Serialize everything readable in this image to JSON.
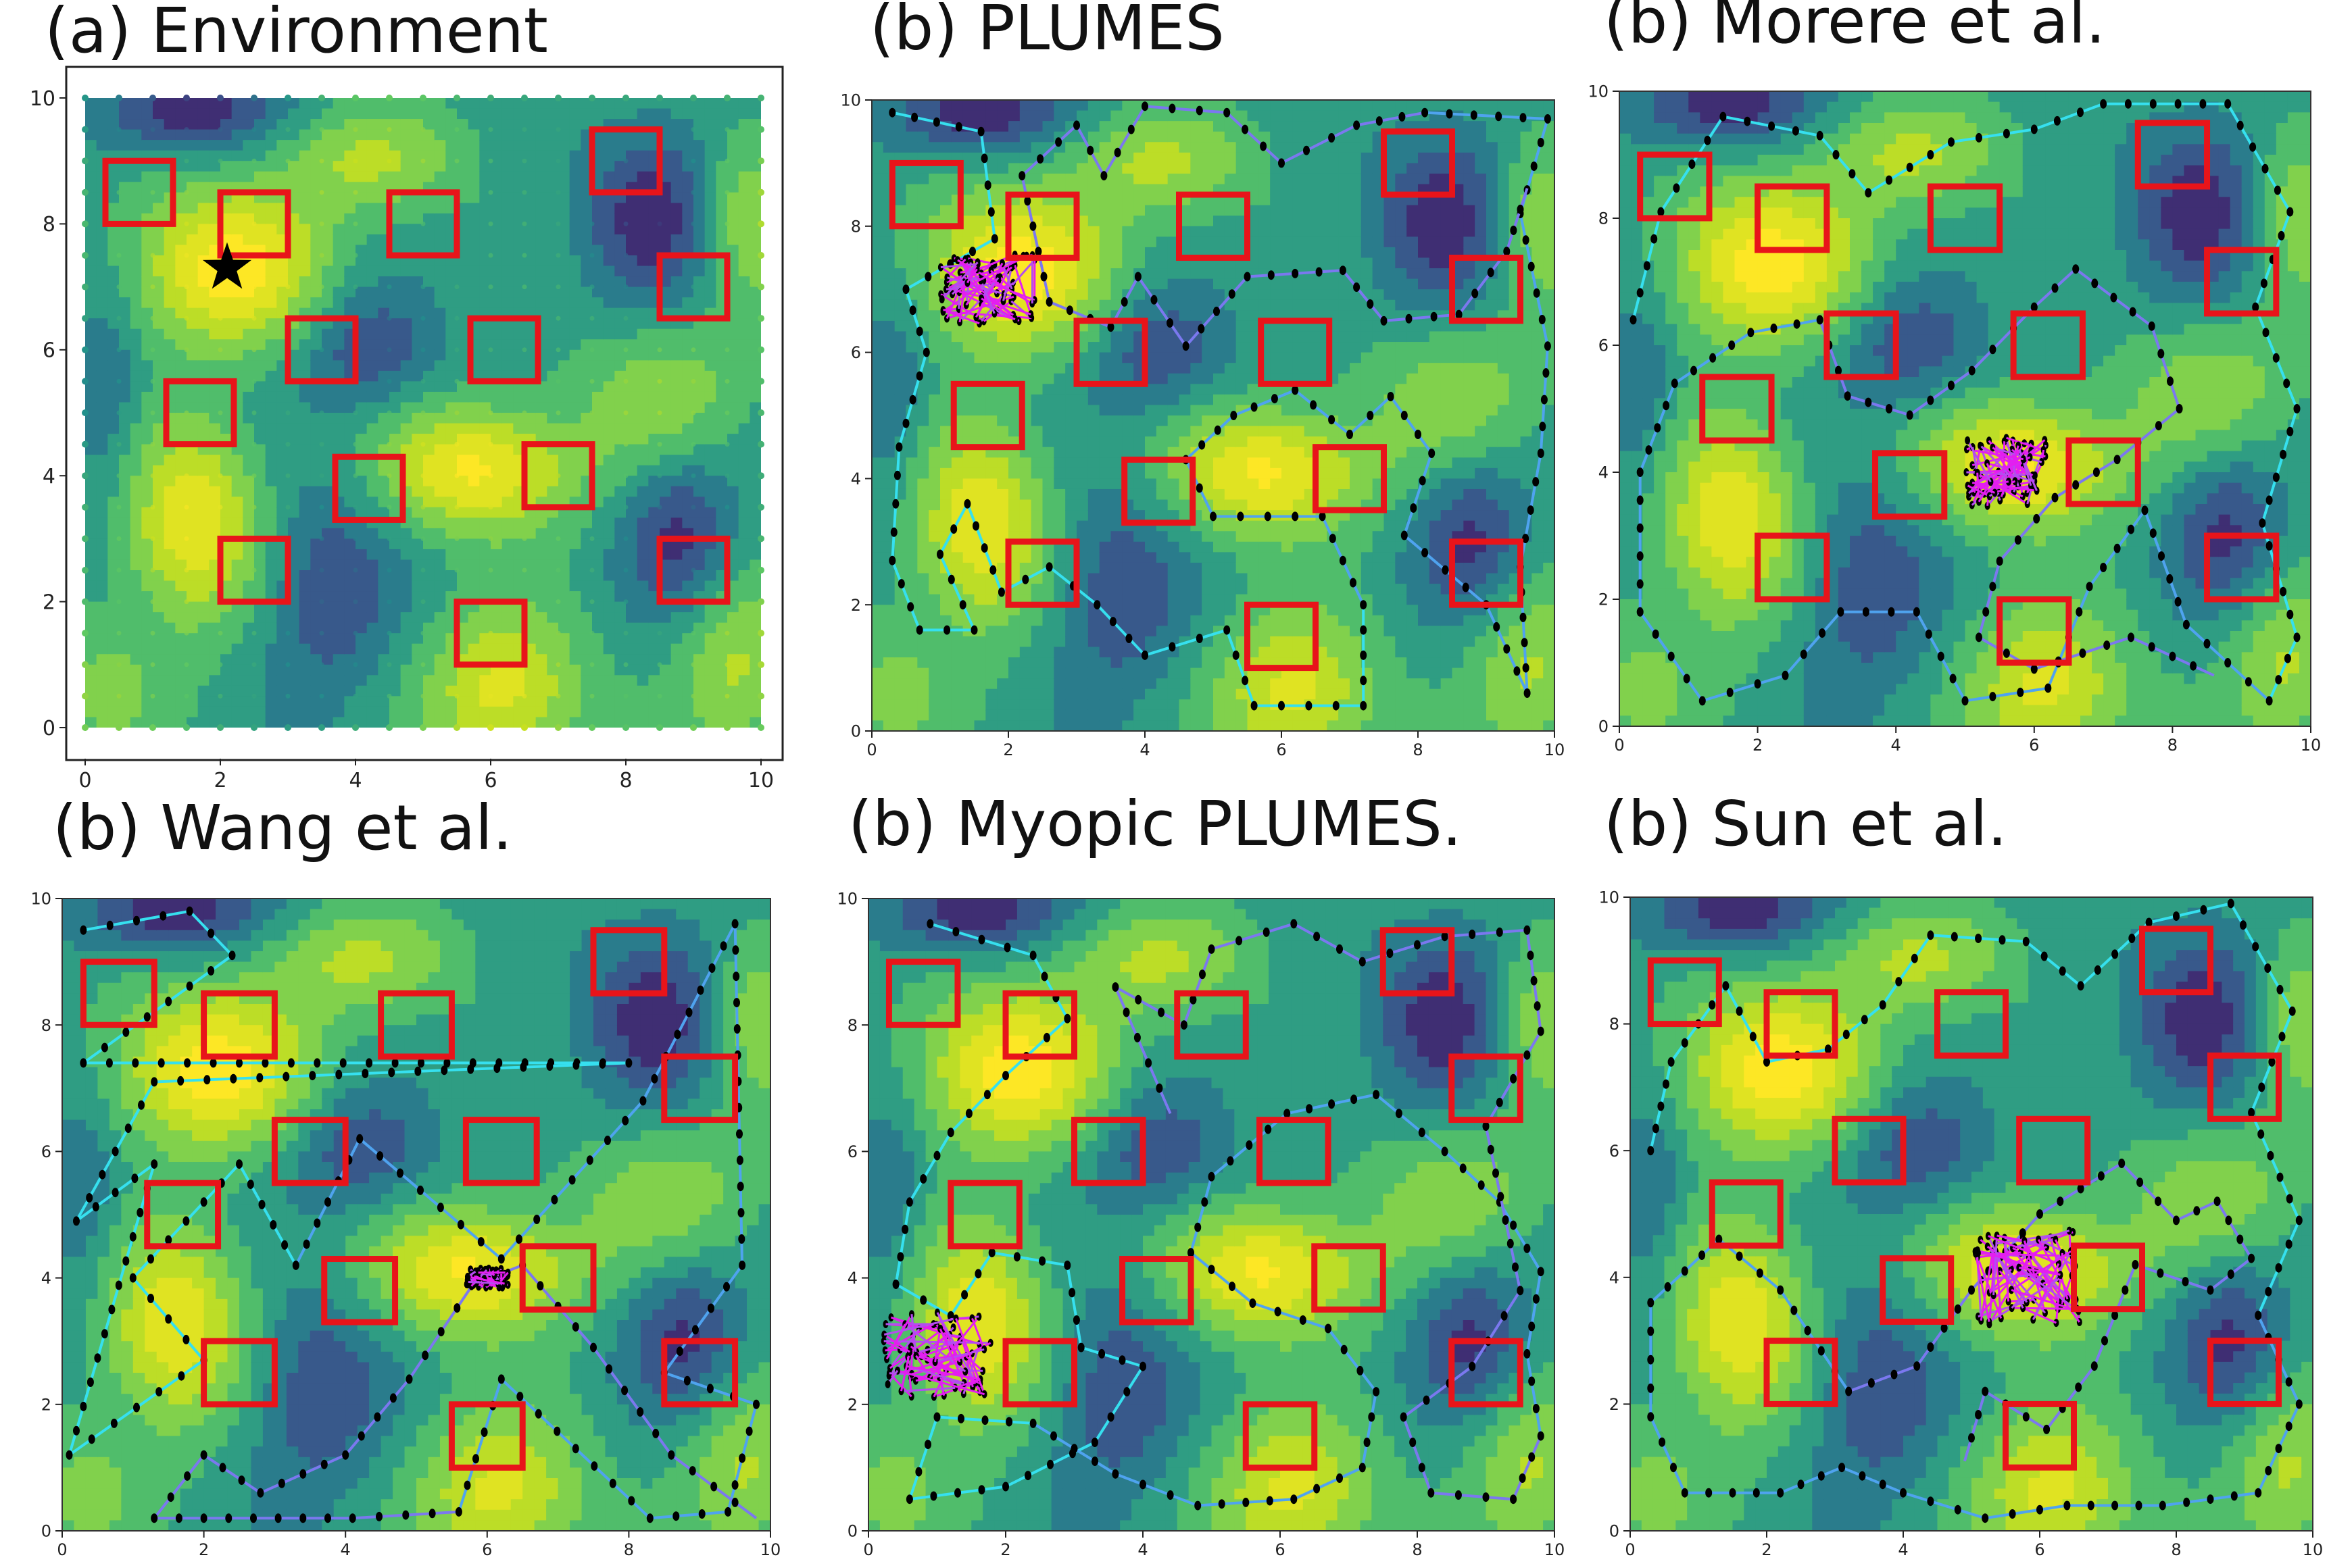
{
  "figure": {
    "colormap": [
      "#440154",
      "#3b528b",
      "#21918c",
      "#5ec962",
      "#c8e020",
      "#fde725"
    ],
    "obstacle_color": "#e8141a",
    "path_colors": [
      "#36e0ef",
      "#4fa3ef",
      "#7b78ef",
      "#b44df0",
      "#e41ef0"
    ],
    "waypoint_color": "#000000",
    "star_color": "#000000"
  },
  "chart_data": [
    {
      "type": "heatmap",
      "title": "(a) Environment",
      "xlabel": "",
      "ylabel": "",
      "xlim": [
        0,
        10
      ],
      "ylim": [
        0,
        10
      ],
      "xticks": [
        "0",
        "2",
        "4",
        "6",
        "8",
        "10"
      ],
      "yticks": [
        "0",
        "2",
        "4",
        "6",
        "8",
        "10"
      ],
      "field": {
        "peaks": [
          {
            "x": 2.1,
            "y": 7.3,
            "amp": 1.0,
            "sx": 1.0,
            "sy": 0.9
          },
          {
            "x": 1.6,
            "y": 3.2,
            "amp": 0.9,
            "sx": 0.7,
            "sy": 1.1
          },
          {
            "x": 5.8,
            "y": 4.1,
            "amp": 0.95,
            "sx": 1.0,
            "sy": 0.7
          },
          {
            "x": 6.2,
            "y": 0.6,
            "amp": 0.8,
            "sx": 0.8,
            "sy": 0.9
          },
          {
            "x": 9.6,
            "y": 1.0,
            "amp": 0.55,
            "sx": 0.6,
            "sy": 1.0
          },
          {
            "x": 8.6,
            "y": 5.2,
            "amp": 0.45,
            "sx": 0.9,
            "sy": 0.9
          },
          {
            "x": 4.2,
            "y": 9.0,
            "amp": 0.5,
            "sx": 1.0,
            "sy": 0.6
          },
          {
            "x": 9.8,
            "y": 8.2,
            "amp": 0.5,
            "sx": 0.5,
            "sy": 1.0
          },
          {
            "x": 0.2,
            "y": 0.6,
            "amp": 0.35,
            "sx": 0.7,
            "sy": 0.7
          }
        ],
        "troughs": [
          {
            "x": 1.5,
            "y": 9.8,
            "amp": 0.9,
            "sx": 0.9,
            "sy": 0.5
          },
          {
            "x": 8.4,
            "y": 8.2,
            "amp": 0.8,
            "sx": 0.7,
            "sy": 1.0
          },
          {
            "x": 4.2,
            "y": 6.0,
            "amp": 0.6,
            "sx": 0.7,
            "sy": 0.7
          },
          {
            "x": 8.8,
            "y": 3.1,
            "amp": 0.7,
            "sx": 0.6,
            "sy": 1.0
          },
          {
            "x": 3.6,
            "y": 2.2,
            "amp": 0.6,
            "sx": 0.7,
            "sy": 1.2
          },
          {
            "x": 0.3,
            "y": 5.5,
            "amp": 0.4,
            "sx": 0.4,
            "sy": 1.2
          }
        ],
        "base": 0.45
      },
      "obstacles": [
        {
          "x": 0.3,
          "y": 8.0,
          "w": 1.0,
          "h": 1.0
        },
        {
          "x": 2.0,
          "y": 7.5,
          "w": 1.0,
          "h": 1.0
        },
        {
          "x": 4.5,
          "y": 7.5,
          "w": 1.0,
          "h": 1.0
        },
        {
          "x": 7.5,
          "y": 8.5,
          "w": 1.0,
          "h": 1.0
        },
        {
          "x": 8.5,
          "y": 6.5,
          "w": 1.0,
          "h": 1.0
        },
        {
          "x": 3.0,
          "y": 5.5,
          "w": 1.0,
          "h": 1.0
        },
        {
          "x": 5.7,
          "y": 5.5,
          "w": 1.0,
          "h": 1.0
        },
        {
          "x": 1.2,
          "y": 4.5,
          "w": 1.0,
          "h": 1.0
        },
        {
          "x": 3.7,
          "y": 3.3,
          "w": 1.0,
          "h": 1.0
        },
        {
          "x": 6.5,
          "y": 3.5,
          "w": 1.0,
          "h": 1.0
        },
        {
          "x": 2.0,
          "y": 2.0,
          "w": 1.0,
          "h": 1.0
        },
        {
          "x": 8.5,
          "y": 2.0,
          "w": 1.0,
          "h": 1.0
        },
        {
          "x": 5.5,
          "y": 1.0,
          "w": 1.0,
          "h": 1.0
        }
      ],
      "star": {
        "x": 2.1,
        "y": 7.3
      }
    },
    {
      "type": "line",
      "title": "(b) PLUMES",
      "xlim": [
        0,
        10
      ],
      "ylim": [
        0,
        10
      ],
      "xticks": [
        "0",
        "2",
        "4",
        "6",
        "8",
        "10"
      ],
      "yticks": [
        "0",
        "2",
        "4",
        "6",
        "8",
        "10"
      ],
      "cluster": {
        "x": 1.7,
        "y": 7.0,
        "rx": 0.7,
        "ry": 0.55
      },
      "path": [
        [
          0.3,
          9.8
        ],
        [
          1.6,
          9.5
        ],
        [
          1.8,
          7.8
        ],
        [
          0.5,
          7.0
        ],
        [
          0.8,
          6.0
        ],
        [
          0.4,
          4.5
        ],
        [
          0.3,
          2.7
        ],
        [
          0.7,
          1.6
        ],
        [
          1.5,
          1.6
        ],
        [
          1.0,
          2.8
        ],
        [
          1.4,
          3.6
        ],
        [
          1.9,
          2.2
        ],
        [
          2.6,
          2.6
        ],
        [
          3.3,
          2.0
        ],
        [
          4.0,
          1.2
        ],
        [
          5.2,
          1.6
        ],
        [
          5.6,
          0.4
        ],
        [
          7.2,
          0.4
        ],
        [
          7.2,
          2.0
        ],
        [
          6.6,
          3.4
        ],
        [
          5.0,
          3.4
        ],
        [
          4.6,
          4.3
        ],
        [
          5.3,
          5.0
        ],
        [
          6.2,
          5.4
        ],
        [
          7.0,
          4.7
        ],
        [
          7.6,
          5.3
        ],
        [
          8.2,
          4.4
        ],
        [
          7.8,
          3.1
        ],
        [
          9.0,
          2.0
        ],
        [
          9.6,
          0.6
        ],
        [
          9.5,
          2.6
        ],
        [
          9.8,
          4.4
        ],
        [
          9.9,
          6.1
        ],
        [
          9.5,
          8.2
        ],
        [
          9.9,
          9.7
        ],
        [
          8.1,
          9.8
        ],
        [
          7.1,
          9.6
        ],
        [
          6.0,
          9.0
        ],
        [
          5.2,
          9.8
        ],
        [
          4.0,
          9.9
        ],
        [
          3.4,
          8.8
        ],
        [
          3.0,
          9.6
        ],
        [
          2.2,
          8.8
        ],
        [
          2.6,
          6.8
        ],
        [
          3.5,
          6.4
        ],
        [
          3.9,
          7.2
        ],
        [
          4.6,
          6.1
        ],
        [
          5.5,
          7.2
        ],
        [
          6.9,
          7.3
        ],
        [
          7.5,
          6.5
        ],
        [
          8.6,
          6.6
        ],
        [
          9.3,
          7.6
        ],
        [
          9.6,
          8.6
        ]
      ],
      "obstacles_ref": 0
    },
    {
      "type": "line",
      "title": "(b) Morere et al.",
      "xlim": [
        0,
        10
      ],
      "ylim": [
        0,
        10
      ],
      "xticks": [
        "0",
        "2",
        "4",
        "6",
        "8",
        "10"
      ],
      "yticks": [
        "0",
        "2",
        "4",
        "6",
        "8",
        "10"
      ],
      "cluster": {
        "x": 5.6,
        "y": 4.0,
        "rx": 0.6,
        "ry": 0.55
      },
      "path": [
        [
          0.2,
          6.4
        ],
        [
          0.6,
          8.1
        ],
        [
          1.5,
          9.6
        ],
        [
          2.9,
          9.3
        ],
        [
          3.6,
          8.4
        ],
        [
          4.8,
          9.2
        ],
        [
          6.0,
          9.4
        ],
        [
          7.0,
          9.8
        ],
        [
          8.8,
          9.8
        ],
        [
          9.7,
          8.1
        ],
        [
          9.2,
          6.6
        ],
        [
          9.8,
          5.0
        ],
        [
          9.3,
          3.2
        ],
        [
          9.8,
          1.4
        ],
        [
          9.4,
          0.4
        ],
        [
          8.2,
          1.6
        ],
        [
          7.6,
          3.4
        ],
        [
          6.8,
          2.2
        ],
        [
          6.2,
          0.6
        ],
        [
          5.0,
          0.4
        ],
        [
          4.3,
          1.8
        ],
        [
          3.2,
          1.8
        ],
        [
          2.4,
          0.8
        ],
        [
          1.2,
          0.4
        ],
        [
          0.3,
          1.8
        ],
        [
          0.3,
          4.0
        ],
        [
          0.8,
          5.4
        ],
        [
          1.9,
          6.2
        ],
        [
          2.9,
          6.4
        ],
        [
          3.3,
          5.2
        ],
        [
          4.2,
          4.9
        ],
        [
          5.1,
          5.6
        ],
        [
          6.0,
          6.6
        ],
        [
          6.6,
          7.2
        ],
        [
          7.7,
          6.3
        ],
        [
          8.1,
          5.0
        ],
        [
          7.2,
          4.2
        ],
        [
          6.3,
          3.6
        ],
        [
          5.5,
          2.6
        ],
        [
          5.2,
          1.4
        ],
        [
          6.0,
          0.9
        ],
        [
          7.4,
          1.4
        ],
        [
          8.6,
          0.8
        ]
      ],
      "obstacles_ref": 0
    },
    {
      "type": "line",
      "title": "(b) Wang et al.",
      "xlim": [
        0,
        10
      ],
      "ylim": [
        0,
        10
      ],
      "xticks": [
        "0",
        "2",
        "4",
        "6",
        "8",
        "10"
      ],
      "yticks": [
        "0",
        "2",
        "4",
        "6",
        "8",
        "10"
      ],
      "cluster": {
        "x": 6.0,
        "y": 4.0,
        "rx": 0.3,
        "ry": 0.15
      },
      "path": [
        [
          0.3,
          9.5
        ],
        [
          1.8,
          9.8
        ],
        [
          2.4,
          9.1
        ],
        [
          0.3,
          7.4
        ],
        [
          8.0,
          7.4
        ],
        [
          1.3,
          7.1
        ],
        [
          0.2,
          4.9
        ],
        [
          1.3,
          5.8
        ],
        [
          0.1,
          1.2
        ],
        [
          2.0,
          2.7
        ],
        [
          1.0,
          4.0
        ],
        [
          2.5,
          5.8
        ],
        [
          3.3,
          4.2
        ],
        [
          4.2,
          6.2
        ],
        [
          6.2,
          4.3
        ],
        [
          8.2,
          6.8
        ],
        [
          9.5,
          9.6
        ],
        [
          9.6,
          4.2
        ],
        [
          8.5,
          2.5
        ],
        [
          9.8,
          2.0
        ],
        [
          9.4,
          0.3
        ],
        [
          8.3,
          0.2
        ],
        [
          6.2,
          2.4
        ],
        [
          5.6,
          0.3
        ],
        [
          4.1,
          0.2
        ],
        [
          1.3,
          0.2
        ],
        [
          2.0,
          1.2
        ],
        [
          2.8,
          0.6
        ],
        [
          4.0,
          1.2
        ],
        [
          4.9,
          2.4
        ],
        [
          5.8,
          3.9
        ],
        [
          6.5,
          4.2
        ],
        [
          7.5,
          2.9
        ],
        [
          8.6,
          1.2
        ],
        [
          9.8,
          0.2
        ]
      ],
      "obstacles_ref": 0
    },
    {
      "type": "line",
      "title": "(b) Myopic PLUMES.",
      "xlim": [
        0,
        10
      ],
      "ylim": [
        0,
        10
      ],
      "xticks": [
        "0",
        "2",
        "4",
        "6",
        "8",
        "10"
      ],
      "yticks": [
        "0",
        "2",
        "4",
        "6",
        "8",
        "10"
      ],
      "cluster": {
        "x": 1.0,
        "y": 2.8,
        "rx": 0.8,
        "ry": 0.7
      },
      "path": [
        [
          0.9,
          9.6
        ],
        [
          2.4,
          9.1
        ],
        [
          2.9,
          8.1
        ],
        [
          2.0,
          7.2
        ],
        [
          1.2,
          6.3
        ],
        [
          0.6,
          5.2
        ],
        [
          0.4,
          3.9
        ],
        [
          1.2,
          3.4
        ],
        [
          1.8,
          4.4
        ],
        [
          2.9,
          4.2
        ],
        [
          3.1,
          2.9
        ],
        [
          4.0,
          2.6
        ],
        [
          3.3,
          1.4
        ],
        [
          2.0,
          0.7
        ],
        [
          0.6,
          0.5
        ],
        [
          1.0,
          1.8
        ],
        [
          2.4,
          1.7
        ],
        [
          3.6,
          0.9
        ],
        [
          4.8,
          0.4
        ],
        [
          6.2,
          0.5
        ],
        [
          7.2,
          1.0
        ],
        [
          7.4,
          2.2
        ],
        [
          6.7,
          3.2
        ],
        [
          5.6,
          3.6
        ],
        [
          4.7,
          4.4
        ],
        [
          5.0,
          5.6
        ],
        [
          6.1,
          6.6
        ],
        [
          7.4,
          6.9
        ],
        [
          8.4,
          6.0
        ],
        [
          9.2,
          5.2
        ],
        [
          9.8,
          4.1
        ],
        [
          9.6,
          2.8
        ],
        [
          9.8,
          1.5
        ],
        [
          9.4,
          0.5
        ],
        [
          8.2,
          0.6
        ],
        [
          7.8,
          1.8
        ],
        [
          8.8,
          2.6
        ],
        [
          9.5,
          3.8
        ],
        [
          9.0,
          6.4
        ],
        [
          9.8,
          7.9
        ],
        [
          9.6,
          9.5
        ],
        [
          8.4,
          9.4
        ],
        [
          7.2,
          9.0
        ],
        [
          6.2,
          9.6
        ],
        [
          5.0,
          9.2
        ],
        [
          4.6,
          8.0
        ],
        [
          3.6,
          8.6
        ],
        [
          4.4,
          6.6
        ]
      ],
      "obstacles_ref": 0
    },
    {
      "type": "line",
      "title": "(b) Sun et al.",
      "xlim": [
        0,
        10
      ],
      "ylim": [
        0,
        10
      ],
      "xticks": [
        "0",
        "2",
        "4",
        "6",
        "8",
        "10"
      ],
      "yticks": [
        "0",
        "2",
        "4",
        "6",
        "8",
        "10"
      ],
      "cluster": {
        "x": 5.8,
        "y": 4.0,
        "rx": 0.8,
        "ry": 0.75
      },
      "path": [
        [
          0.3,
          6.0
        ],
        [
          0.6,
          7.4
        ],
        [
          1.4,
          8.6
        ],
        [
          2.0,
          7.4
        ],
        [
          2.9,
          7.6
        ],
        [
          3.7,
          8.3
        ],
        [
          4.4,
          9.4
        ],
        [
          5.8,
          9.3
        ],
        [
          6.6,
          8.6
        ],
        [
          7.6,
          9.6
        ],
        [
          8.8,
          9.9
        ],
        [
          9.7,
          8.2
        ],
        [
          9.1,
          6.6
        ],
        [
          9.8,
          4.9
        ],
        [
          9.2,
          3.4
        ],
        [
          9.8,
          2.0
        ],
        [
          9.2,
          0.6
        ],
        [
          7.8,
          0.4
        ],
        [
          6.4,
          0.4
        ],
        [
          5.2,
          0.2
        ],
        [
          4.0,
          0.6
        ],
        [
          3.1,
          1.0
        ],
        [
          2.2,
          0.6
        ],
        [
          0.8,
          0.6
        ],
        [
          0.3,
          1.8
        ],
        [
          0.3,
          3.6
        ],
        [
          1.3,
          4.6
        ],
        [
          2.2,
          3.8
        ],
        [
          3.2,
          2.2
        ],
        [
          4.2,
          2.6
        ],
        [
          5.0,
          3.8
        ],
        [
          6.0,
          5.0
        ],
        [
          7.2,
          5.8
        ],
        [
          8.0,
          4.9
        ],
        [
          8.6,
          5.2
        ],
        [
          9.1,
          4.3
        ],
        [
          8.5,
          3.8
        ],
        [
          7.4,
          4.2
        ],
        [
          6.8,
          2.6
        ],
        [
          6.1,
          1.6
        ],
        [
          5.2,
          2.2
        ],
        [
          4.9,
          1.1
        ]
      ],
      "obstacles_ref": 0
    }
  ]
}
